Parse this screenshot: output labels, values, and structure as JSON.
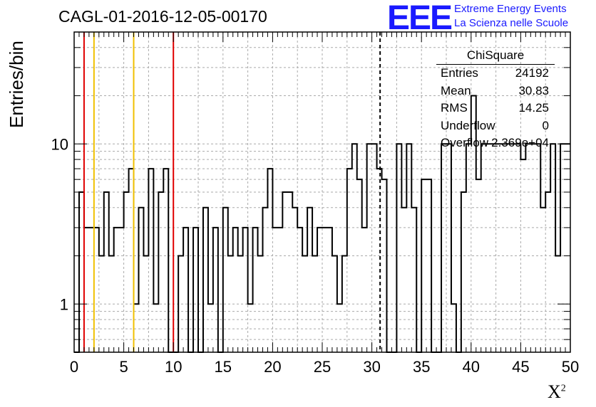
{
  "header": {
    "title": "CAGL-01-2016-12-05-00170",
    "logo": "EEE",
    "logo_line1": "Extreme Energy Events",
    "logo_line2": "La Scienza nelle Scuole"
  },
  "stats": {
    "title": "ChiSquare",
    "rows": [
      {
        "key": "Entries",
        "value": "24192"
      },
      {
        "key": "Mean",
        "value": "30.83"
      },
      {
        "key": "RMS",
        "value": "14.25"
      },
      {
        "key": "Underflow",
        "value": "0"
      },
      {
        "key": "Overflow",
        "value": "2.369e+04"
      }
    ]
  },
  "chart_data": {
    "type": "histogram",
    "ylabel": "Entries/bin",
    "xlabel": "X",
    "xlabel_sup": "2",
    "xlim": [
      0,
      50
    ],
    "ylim": [
      0.5,
      50
    ],
    "yscale": "log",
    "bin_width": 0.5,
    "x_ticks": [
      "0",
      "5",
      "10",
      "15",
      "20",
      "25",
      "30",
      "35",
      "40",
      "45",
      "50"
    ],
    "y_ticks": [
      "1",
      "10"
    ],
    "grid": true,
    "legend_placement": "top-right",
    "counts": [
      0,
      5,
      3,
      3,
      3,
      2,
      5,
      2,
      3,
      3,
      5,
      7,
      1,
      4,
      2,
      7,
      1,
      5,
      7,
      0,
      0,
      2,
      3,
      0,
      3,
      0,
      4,
      1,
      3,
      0,
      4,
      2,
      3,
      2,
      3,
      1,
      3,
      2,
      4,
      7,
      3,
      3,
      5,
      5,
      4,
      3,
      2,
      4,
      2,
      3,
      3,
      3,
      2,
      1,
      2,
      7,
      10,
      6,
      3,
      10,
      10,
      7,
      6,
      0,
      0,
      10,
      4,
      10,
      4,
      0,
      6,
      6,
      0,
      0,
      10,
      10,
      1,
      0,
      5,
      10,
      20,
      6,
      10,
      10,
      10,
      10,
      10,
      10,
      10,
      10,
      8,
      10,
      10,
      10,
      4,
      5,
      10,
      2,
      10,
      10
    ],
    "series_color": "#000000",
    "markers": [
      {
        "x": 1,
        "color": "#e00000",
        "style": "solid"
      },
      {
        "x": 2,
        "color": "#f0c000",
        "style": "solid"
      },
      {
        "x": 6,
        "color": "#f0c000",
        "style": "solid"
      },
      {
        "x": 10,
        "color": "#e00000",
        "style": "solid"
      },
      {
        "x": 30.83,
        "color": "#000000",
        "style": "dashed"
      }
    ]
  }
}
